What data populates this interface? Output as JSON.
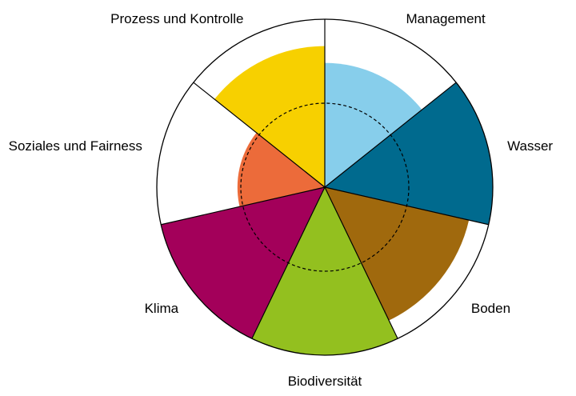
{
  "chart_data": {
    "type": "polar-area",
    "title": "",
    "max_value": 100,
    "reference_value": 50,
    "categories": [
      "Management",
      "Wasser",
      "Boden",
      "Biodiversität",
      "Klima",
      "Soziales und Fairness",
      "Prozess und Kontrolle"
    ],
    "values": [
      74,
      100,
      88,
      100,
      100,
      52,
      84
    ],
    "colors": [
      "#87CEEB",
      "#006A8E",
      "#A0690D",
      "#93C01F",
      "#A3005A",
      "#EC6B3A",
      "#F7D000"
    ]
  }
}
